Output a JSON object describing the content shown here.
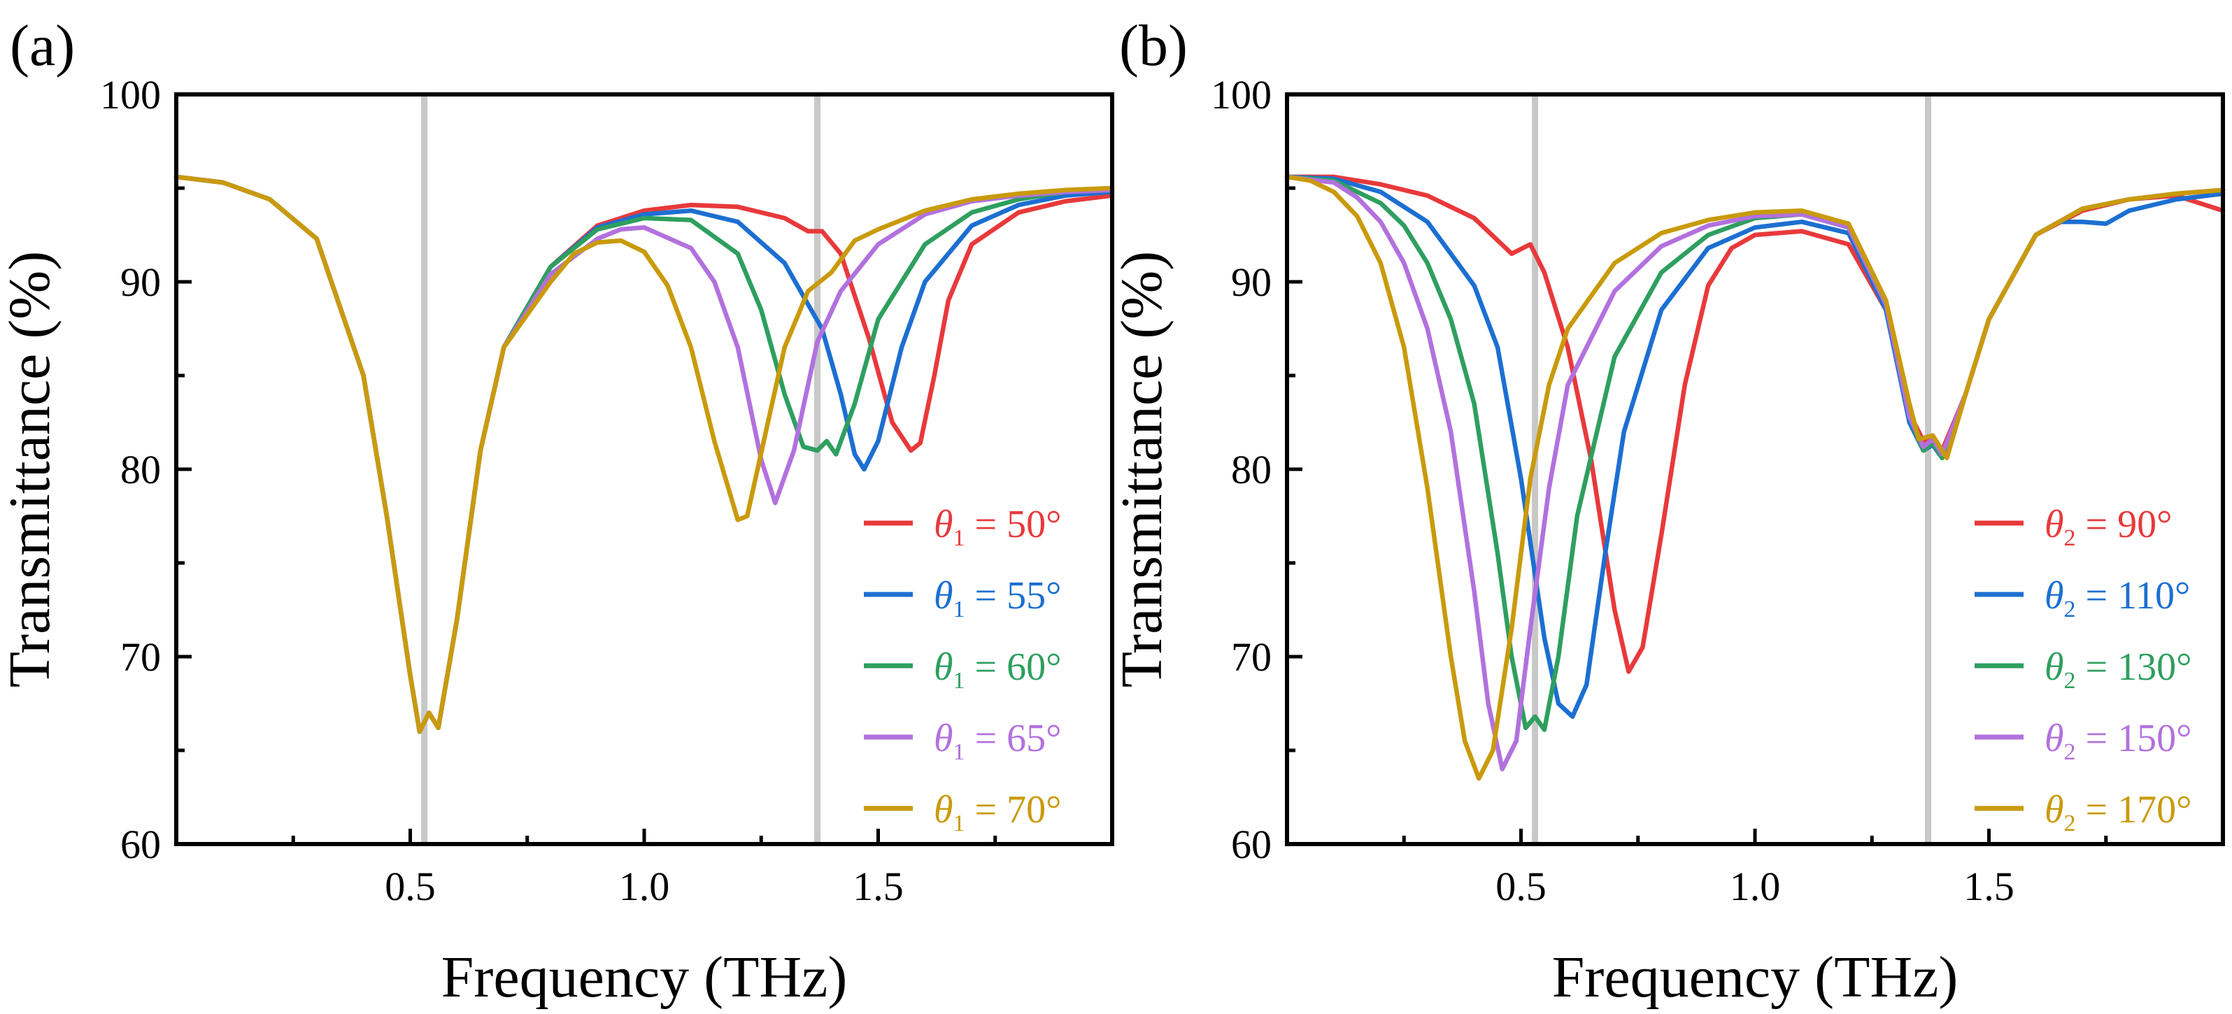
{
  "colors": {
    "red": "#e8393b",
    "blue": "#1c6fd1",
    "green": "#2e9f5f",
    "purple": "#b271de",
    "gold": "#c99a0b",
    "marker_line": "#c8c8c8"
  },
  "chart_data": [
    {
      "type": "line",
      "panel_label": "(a)",
      "xlabel": "Frequency (THz)",
      "ylabel": "Transmittance (%)",
      "xlim": [
        0,
        2.0
      ],
      "ylim": [
        60,
        100
      ],
      "xticks": [
        {
          "v": 0.5,
          "label": "0.5"
        },
        {
          "v": 1.0,
          "label": "1.0"
        },
        {
          "v": 1.5,
          "label": "1.5"
        }
      ],
      "yticks": [
        {
          "v": 60,
          "label": "60"
        },
        {
          "v": 70,
          "label": "70"
        },
        {
          "v": 80,
          "label": "80"
        },
        {
          "v": 90,
          "label": "90"
        },
        {
          "v": 100,
          "label": "100"
        }
      ],
      "vlines": [
        0.53,
        1.37
      ],
      "legend_position": "bottom-right",
      "series": [
        {
          "name": "θ1 = 50°",
          "sym": "θ",
          "sub": "1",
          "value": " = 50°",
          "color": "#e8393b",
          "x": [
            0,
            0.1,
            0.2,
            0.3,
            0.4,
            0.45,
            0.5,
            0.52,
            0.54,
            0.56,
            0.6,
            0.65,
            0.7,
            0.8,
            0.9,
            1.0,
            1.1,
            1.2,
            1.3,
            1.35,
            1.38,
            1.42,
            1.48,
            1.53,
            1.57,
            1.59,
            1.62,
            1.65,
            1.7,
            1.8,
            1.9,
            2.0
          ],
          "y": [
            95.6,
            95.3,
            94.4,
            92.3,
            85.0,
            77.5,
            69.0,
            66.0,
            67.0,
            66.2,
            72.0,
            81.0,
            86.5,
            90.8,
            93.0,
            93.8,
            94.1,
            94.0,
            93.4,
            92.7,
            92.7,
            91.5,
            87.0,
            82.5,
            81.0,
            81.4,
            85.0,
            89.0,
            92.0,
            93.7,
            94.3,
            94.6
          ]
        },
        {
          "name": "θ1 = 55°",
          "sym": "θ",
          "sub": "1",
          "value": " = 55°",
          "color": "#1c6fd1",
          "x": [
            0,
            0.1,
            0.2,
            0.3,
            0.4,
            0.45,
            0.5,
            0.52,
            0.54,
            0.56,
            0.6,
            0.65,
            0.7,
            0.8,
            0.9,
            1.0,
            1.1,
            1.2,
            1.3,
            1.35,
            1.38,
            1.42,
            1.45,
            1.47,
            1.5,
            1.55,
            1.6,
            1.7,
            1.8,
            1.9,
            2.0
          ],
          "y": [
            95.6,
            95.3,
            94.4,
            92.3,
            85.0,
            77.5,
            69.0,
            66.0,
            67.0,
            66.2,
            72.0,
            81.0,
            86.5,
            90.8,
            92.9,
            93.6,
            93.8,
            93.2,
            91.0,
            88.8,
            87.5,
            84.0,
            80.8,
            80.0,
            81.5,
            86.5,
            90.0,
            93.0,
            94.1,
            94.6,
            94.8
          ]
        },
        {
          "name": "θ1 = 60°",
          "sym": "θ",
          "sub": "1",
          "value": " = 60°",
          "color": "#2e9f5f",
          "x": [
            0,
            0.1,
            0.2,
            0.3,
            0.4,
            0.45,
            0.5,
            0.52,
            0.54,
            0.56,
            0.6,
            0.65,
            0.7,
            0.8,
            0.9,
            1.0,
            1.1,
            1.2,
            1.25,
            1.3,
            1.34,
            1.37,
            1.39,
            1.41,
            1.45,
            1.5,
            1.6,
            1.7,
            1.8,
            1.9,
            2.0
          ],
          "y": [
            95.6,
            95.3,
            94.4,
            92.3,
            85.0,
            77.5,
            69.0,
            66.0,
            67.0,
            66.2,
            72.0,
            81.0,
            86.5,
            90.8,
            92.8,
            93.4,
            93.3,
            91.5,
            88.5,
            84.0,
            81.2,
            81.0,
            81.5,
            80.8,
            83.5,
            88.0,
            92.0,
            93.7,
            94.4,
            94.8,
            94.9
          ]
        },
        {
          "name": "θ1 = 65°",
          "sym": "θ",
          "sub": "1",
          "value": " = 65°",
          "color": "#b271de",
          "x": [
            0,
            0.1,
            0.2,
            0.3,
            0.4,
            0.45,
            0.5,
            0.52,
            0.54,
            0.56,
            0.6,
            0.65,
            0.7,
            0.8,
            0.9,
            0.95,
            1.0,
            1.1,
            1.15,
            1.2,
            1.25,
            1.28,
            1.32,
            1.37,
            1.42,
            1.5,
            1.6,
            1.7,
            1.8,
            1.9,
            2.0
          ],
          "y": [
            95.6,
            95.3,
            94.4,
            92.3,
            85.0,
            77.5,
            69.0,
            66.0,
            67.0,
            66.2,
            72.0,
            81.0,
            86.5,
            90.4,
            92.3,
            92.8,
            92.9,
            91.8,
            90.0,
            86.5,
            80.5,
            78.2,
            81.0,
            86.8,
            89.5,
            92.0,
            93.6,
            94.3,
            94.6,
            94.8,
            94.9
          ]
        },
        {
          "name": "θ1 = 70°",
          "sym": "θ",
          "sub": "1",
          "value": " = 70°",
          "color": "#c99a0b",
          "x": [
            0,
            0.1,
            0.2,
            0.3,
            0.4,
            0.45,
            0.5,
            0.52,
            0.54,
            0.56,
            0.6,
            0.65,
            0.7,
            0.8,
            0.85,
            0.9,
            0.95,
            1.0,
            1.05,
            1.1,
            1.15,
            1.2,
            1.22,
            1.26,
            1.3,
            1.35,
            1.4,
            1.45,
            1.5,
            1.6,
            1.7,
            1.8,
            1.9,
            2.0
          ],
          "y": [
            95.6,
            95.3,
            94.4,
            92.3,
            85.0,
            77.5,
            69.0,
            66.0,
            67.0,
            66.2,
            72.0,
            81.0,
            86.5,
            90.0,
            91.5,
            92.1,
            92.2,
            91.6,
            89.8,
            86.5,
            81.5,
            77.3,
            77.5,
            82.0,
            86.5,
            89.5,
            90.5,
            92.2,
            92.8,
            93.8,
            94.4,
            94.7,
            94.9,
            95.0
          ]
        }
      ]
    },
    {
      "type": "line",
      "panel_label": "(b)",
      "xlabel": "Frequency (THz)",
      "ylabel": "Transmittance (%)",
      "xlim": [
        0,
        2.0
      ],
      "ylim": [
        60,
        100
      ],
      "xticks": [
        {
          "v": 0.5,
          "label": "0.5"
        },
        {
          "v": 1.0,
          "label": "1.0"
        },
        {
          "v": 1.5,
          "label": "1.5"
        }
      ],
      "yticks": [
        {
          "v": 60,
          "label": "60"
        },
        {
          "v": 70,
          "label": "70"
        },
        {
          "v": 80,
          "label": "80"
        },
        {
          "v": 90,
          "label": "90"
        },
        {
          "v": 100,
          "label": "100"
        }
      ],
      "vlines": [
        0.53,
        1.37
      ],
      "legend_position": "bottom-right",
      "series": [
        {
          "name": "θ2 = 90°",
          "sym": "θ",
          "sub": "2",
          "value": " = 90°",
          "color": "#e8393b",
          "x": [
            0,
            0.1,
            0.2,
            0.3,
            0.4,
            0.48,
            0.52,
            0.55,
            0.6,
            0.65,
            0.7,
            0.73,
            0.76,
            0.8,
            0.85,
            0.9,
            0.95,
            1.0,
            1.1,
            1.2,
            1.28,
            1.33,
            1.36,
            1.38,
            1.4,
            1.45,
            1.5,
            1.6,
            1.7,
            1.8,
            1.9,
            2.0
          ],
          "y": [
            95.6,
            95.6,
            95.2,
            94.6,
            93.4,
            91.5,
            92.0,
            90.5,
            86.5,
            80.5,
            72.5,
            69.2,
            70.5,
            76.5,
            84.5,
            89.8,
            91.8,
            92.5,
            92.7,
            92.0,
            88.5,
            83.0,
            81.5,
            81.8,
            81.0,
            84.0,
            88.0,
            92.5,
            93.8,
            94.4,
            94.6,
            93.8
          ]
        },
        {
          "name": "θ2 = 110°",
          "sym": "θ",
          "sub": "2",
          "value": " = 110°",
          "color": "#1c6fd1",
          "x": [
            0,
            0.1,
            0.2,
            0.3,
            0.4,
            0.45,
            0.5,
            0.55,
            0.58,
            0.61,
            0.64,
            0.68,
            0.72,
            0.8,
            0.9,
            1.0,
            1.1,
            1.2,
            1.28,
            1.33,
            1.36,
            1.38,
            1.4,
            1.45,
            1.5,
            1.6,
            1.65,
            1.7,
            1.75,
            1.8,
            1.9,
            2.0
          ],
          "y": [
            95.6,
            95.5,
            94.8,
            93.2,
            89.8,
            86.5,
            79.5,
            71.0,
            67.5,
            66.8,
            68.5,
            75.5,
            82.0,
            88.5,
            91.8,
            92.9,
            93.2,
            92.6,
            88.5,
            82.5,
            81.0,
            81.3,
            80.6,
            84.0,
            88.0,
            92.5,
            93.2,
            93.2,
            93.1,
            93.8,
            94.4,
            94.7
          ]
        },
        {
          "name": "θ2 = 130°",
          "sym": "θ",
          "sub": "2",
          "value": " = 130°",
          "color": "#2e9f5f",
          "x": [
            0,
            0.1,
            0.2,
            0.25,
            0.3,
            0.35,
            0.4,
            0.45,
            0.48,
            0.51,
            0.53,
            0.55,
            0.58,
            0.62,
            0.7,
            0.8,
            0.9,
            1.0,
            1.1,
            1.2,
            1.28,
            1.33,
            1.36,
            1.38,
            1.4,
            1.45,
            1.5,
            1.6,
            1.7,
            1.8,
            1.9,
            2.0
          ],
          "y": [
            95.6,
            95.4,
            94.2,
            93.0,
            91.0,
            88.0,
            83.5,
            75.5,
            70.0,
            66.2,
            66.8,
            66.1,
            70.0,
            77.5,
            86.0,
            90.5,
            92.5,
            93.4,
            93.6,
            92.9,
            88.8,
            82.8,
            81.0,
            81.4,
            80.6,
            84.0,
            88.0,
            92.5,
            93.9,
            94.4,
            94.7,
            94.9
          ]
        },
        {
          "name": "θ2 = 150°",
          "sym": "θ",
          "sub": "2",
          "value": " = 150°",
          "color": "#b271de",
          "x": [
            0,
            0.1,
            0.15,
            0.2,
            0.25,
            0.3,
            0.35,
            0.4,
            0.43,
            0.46,
            0.49,
            0.52,
            0.56,
            0.6,
            0.7,
            0.8,
            0.9,
            1.0,
            1.1,
            1.2,
            1.28,
            1.33,
            1.36,
            1.38,
            1.4,
            1.45,
            1.5,
            1.6,
            1.7,
            1.8,
            1.9,
            2.0
          ],
          "y": [
            95.6,
            95.3,
            94.5,
            93.2,
            91.0,
            87.5,
            82.0,
            73.5,
            67.5,
            64.0,
            65.5,
            71.5,
            79.0,
            84.5,
            89.5,
            91.9,
            93.0,
            93.5,
            93.6,
            92.9,
            88.8,
            82.8,
            81.2,
            81.6,
            80.8,
            84.0,
            88.0,
            92.5,
            93.9,
            94.4,
            94.7,
            94.9
          ]
        },
        {
          "name": "θ2 = 170°",
          "sym": "θ",
          "sub": "2",
          "value": " = 170°",
          "color": "#c99a0b",
          "x": [
            0,
            0.05,
            0.1,
            0.15,
            0.2,
            0.25,
            0.3,
            0.35,
            0.38,
            0.41,
            0.44,
            0.48,
            0.52,
            0.56,
            0.6,
            0.7,
            0.8,
            0.9,
            1.0,
            1.1,
            1.2,
            1.28,
            1.33,
            1.35,
            1.38,
            1.41,
            1.45,
            1.5,
            1.6,
            1.7,
            1.8,
            1.9,
            2.0
          ],
          "y": [
            95.6,
            95.4,
            94.8,
            93.5,
            91.0,
            86.5,
            79.0,
            70.0,
            65.5,
            63.5,
            65.0,
            71.5,
            79.5,
            84.5,
            87.5,
            91.0,
            92.6,
            93.3,
            93.7,
            93.8,
            93.1,
            89.0,
            83.5,
            81.6,
            81.8,
            80.6,
            84.0,
            88.0,
            92.5,
            93.9,
            94.4,
            94.7,
            94.9
          ]
        }
      ]
    }
  ]
}
